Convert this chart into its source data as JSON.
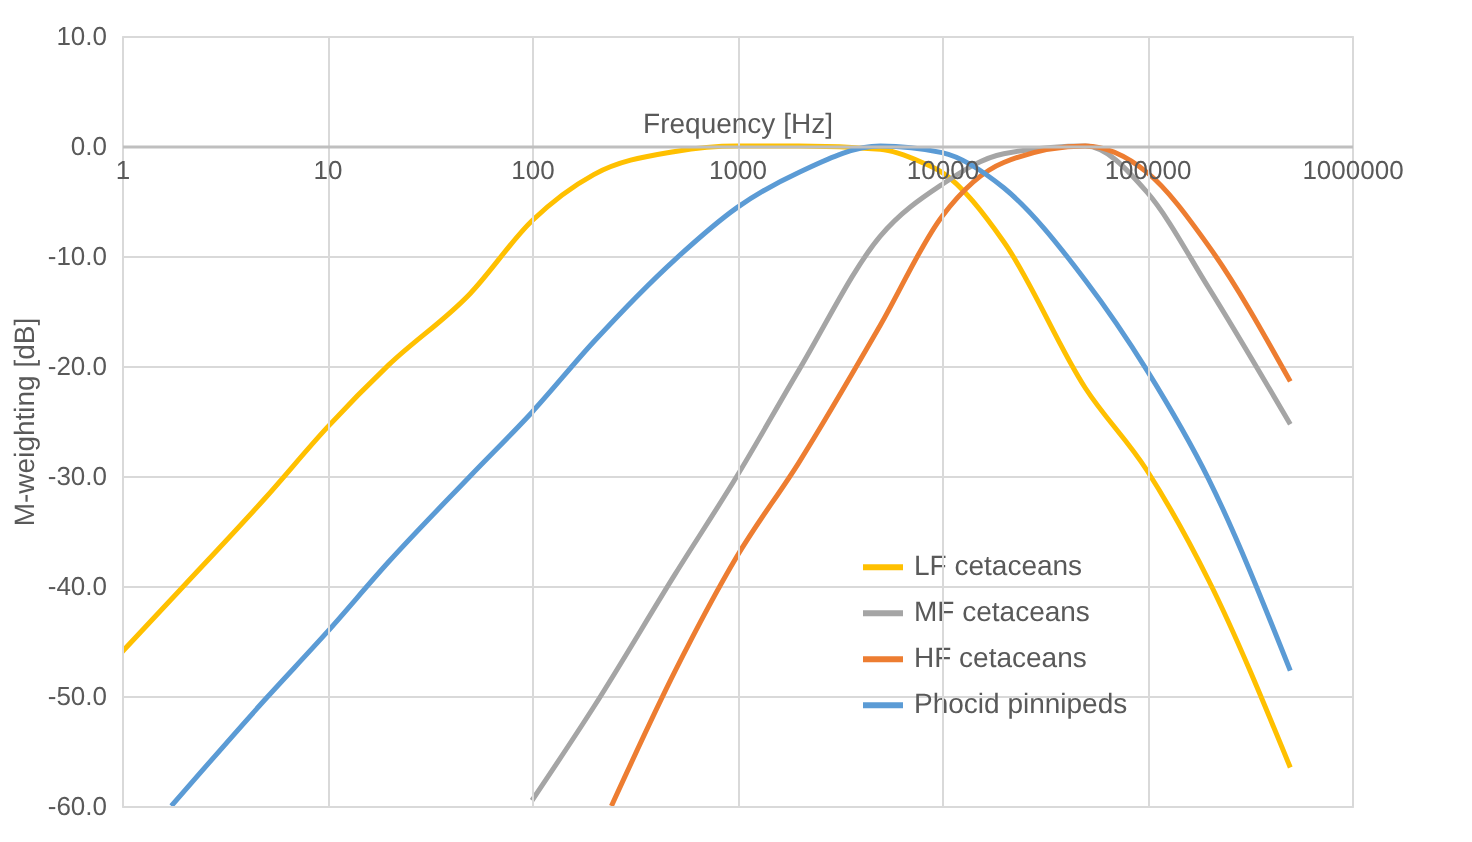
{
  "chart_data": {
    "type": "line",
    "xlabel": "Frequency [Hz]",
    "ylabel": "M-weighting [dB]",
    "log": "x",
    "grid": true,
    "legend": "bottom",
    "marker": "none",
    "line_style": "solid",
    "xlim": [
      1,
      1000000
    ],
    "xticks": [
      1,
      10,
      100,
      1000,
      10000,
      100000,
      1000000
    ],
    "ylim": [
      -60,
      10
    ],
    "yticks": [
      {
        "value": -60,
        "label": "-60.0"
      },
      {
        "value": -50,
        "label": "-50.0"
      },
      {
        "value": -40,
        "label": "-40.0"
      },
      {
        "value": -30,
        "label": "-30.0"
      },
      {
        "value": -20,
        "label": "-20.0"
      },
      {
        "value": -10,
        "label": "-10.0"
      },
      {
        "value": 0,
        "label": "0.0"
      },
      {
        "value": 10,
        "label": "10.0"
      }
    ],
    "series": [
      {
        "name": "LF cetaceans",
        "color": "#ffc000",
        "x": [
          1,
          2,
          5,
          10,
          20,
          50,
          100,
          200,
          500,
          1000,
          2000,
          5000,
          8000,
          10000,
          20000,
          50000,
          100000,
          200000,
          500000
        ],
        "values": [
          -46,
          -40,
          -32,
          -25.6,
          -19.9,
          -13.4,
          -6.8,
          -2.6,
          -0.5,
          0,
          0,
          -0.3,
          -1.5,
          -2.4,
          -8.7,
          -22,
          -29.5,
          -39.5,
          -56.5
        ]
      },
      {
        "name": "MF cetaceans",
        "color": "#a5a5a5",
        "x": [
          100,
          200,
          500,
          1000,
          2000,
          5000,
          10000,
          20000,
          50000,
          100000,
          200000,
          500000
        ],
        "values": [
          -59.5,
          -51,
          -38.9,
          -30,
          -20.4,
          -8.2,
          -3.5,
          -0.7,
          0,
          -4.2,
          -12.9,
          -25.3
        ]
      },
      {
        "name": "HF cetaceans",
        "color": "#ed7d31",
        "x": [
          244,
          500,
          1000,
          2000,
          5000,
          10000,
          20000,
          50000,
          100000,
          200000,
          500000
        ],
        "values": [
          -60,
          -47.7,
          -37.3,
          -28.8,
          -16.3,
          -6.4,
          -1.5,
          0,
          -2.4,
          -9.1,
          -21.4
        ]
      },
      {
        "name": "Phocid pinnipeds",
        "color": "#5b9bd5",
        "x": [
          1.74,
          5,
          10,
          20,
          50,
          100,
          200,
          500,
          1000,
          2000,
          5000,
          10000,
          20000,
          50000,
          100000,
          200000,
          500000
        ],
        "values": [
          -60,
          -50.3,
          -44.2,
          -37.8,
          -30,
          -24.2,
          -17.8,
          -10.3,
          -5.6,
          -2.4,
          0,
          -0.6,
          -3.8,
          -12.2,
          -20.4,
          -30.3,
          -47.7
        ]
      }
    ]
  }
}
